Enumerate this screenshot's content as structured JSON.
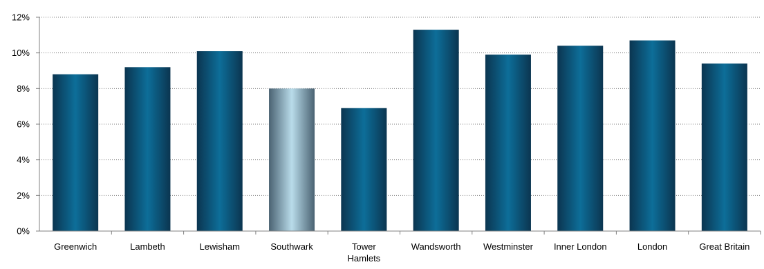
{
  "chart_data": {
    "type": "bar",
    "categories": [
      "Greenwich",
      "Lambeth",
      "Lewisham",
      "Southwark",
      "Tower Hamlets",
      "Wandsworth",
      "Westminster",
      "Inner London",
      "London",
      "Great Britain"
    ],
    "category_lines": [
      [
        "Greenwich"
      ],
      [
        "Lambeth"
      ],
      [
        "Lewisham"
      ],
      [
        "Southwark"
      ],
      [
        "Tower",
        "Hamlets"
      ],
      [
        "Wandsworth"
      ],
      [
        "Westminster"
      ],
      [
        "Inner London"
      ],
      [
        "London"
      ],
      [
        "Great Britain"
      ]
    ],
    "values": [
      8.8,
      9.2,
      10.1,
      8.0,
      6.9,
      11.3,
      9.9,
      10.4,
      10.7,
      9.4
    ],
    "highlight_category": "Southwark",
    "ylim": [
      0,
      12
    ],
    "yticks": [
      0,
      2,
      4,
      6,
      8,
      10,
      12
    ],
    "ytick_suffix": "%",
    "grid": true,
    "legend": "none",
    "colors": {
      "bar_dark": "#0b3550",
      "bar_mid": "#0d6e99",
      "highlight_dark": "#4a6272",
      "highlight_light": "#b9dcea",
      "grid": "#808080",
      "axis": "#808080"
    }
  }
}
